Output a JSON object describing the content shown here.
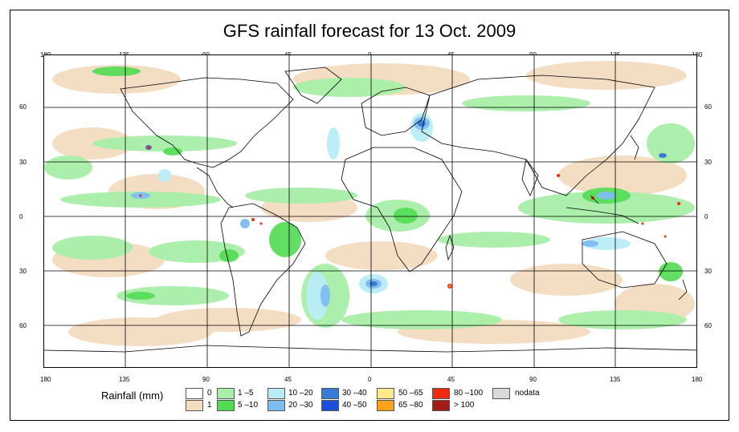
{
  "title": "GFS rainfall forecast for 13 Oct. 2009",
  "axes": {
    "lon_top": [
      "180",
      "135",
      "90",
      "45",
      "0",
      "45",
      "90",
      "135",
      "180"
    ],
    "lon_bottom": [
      "180",
      "135",
      "90",
      "45",
      "0",
      "45",
      "90",
      "135",
      "180"
    ],
    "lat_left": [
      "60",
      "30",
      "0",
      "30",
      "60"
    ],
    "lat_right": [
      "60",
      "30",
      "0",
      "30",
      "60"
    ]
  },
  "legend": {
    "label": "Rainfall (mm)",
    "items": [
      {
        "label": "0",
        "color": "#ffffff"
      },
      {
        "label": "1",
        "color": "#f3dcc0"
      },
      {
        "label": "1 –5",
        "color": "#a8efa8"
      },
      {
        "label": "5 –10",
        "color": "#52dc52"
      },
      {
        "label": "10 –20",
        "color": "#b9ecf7"
      },
      {
        "label": "20 –30",
        "color": "#7ebdf2"
      },
      {
        "label": "30 –40",
        "color": "#3a7bd8"
      },
      {
        "label": "40 –50",
        "color": "#1b4fd9"
      },
      {
        "label": "50 –65",
        "color": "#ffe98a"
      },
      {
        "label": "65 –80",
        "color": "#ffa31a"
      },
      {
        "label": "80 –100",
        "color": "#ee2a10"
      },
      {
        "label": "> 100",
        "color": "#a61a16"
      },
      {
        "label": "nodata",
        "color": "#d9d9d9"
      }
    ]
  },
  "colors": {
    "frame": "#000000",
    "background": "#ffffff"
  }
}
